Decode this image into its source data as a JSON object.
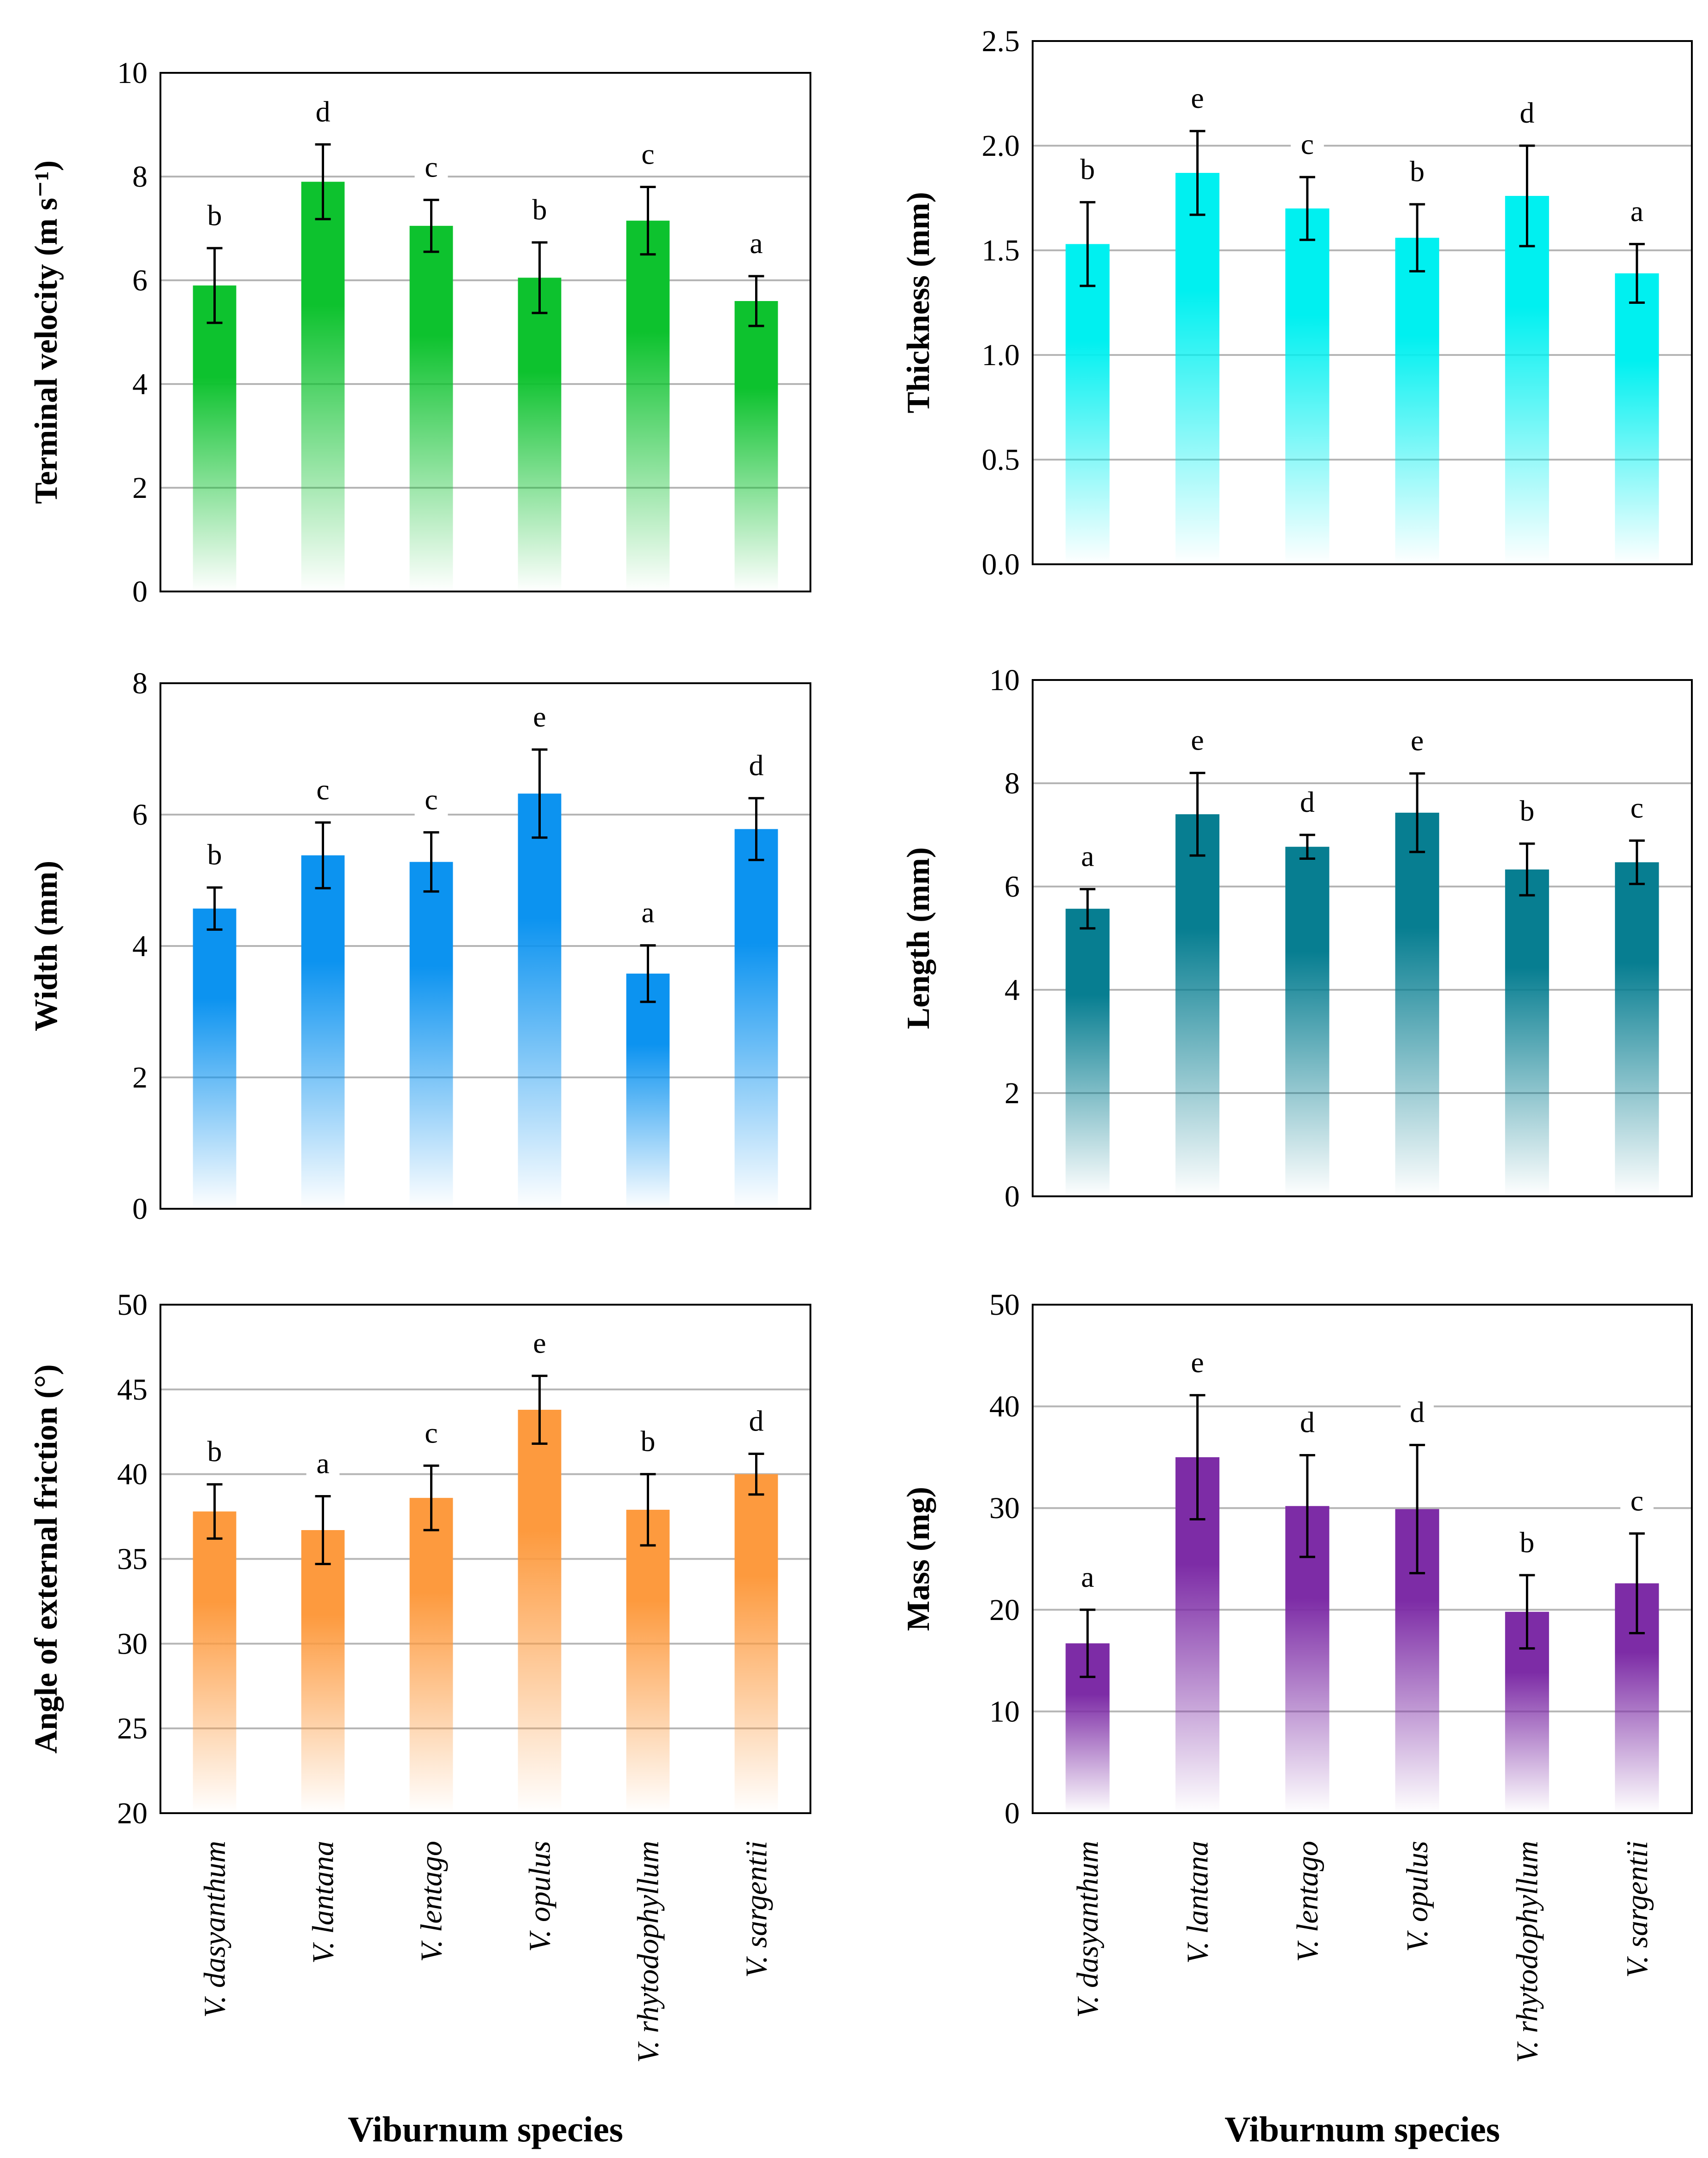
{
  "chart_data": [
    {
      "type": "bar",
      "id": "terminal-velocity",
      "color": "#0dc22e",
      "ylabel": "Terminal velocity (m s⁻¹)",
      "ylim": [
        0,
        10
      ],
      "yticks": [
        0,
        2,
        4,
        6,
        8,
        10
      ],
      "categories": [
        "V. dasyanthum",
        "V. lantana",
        "V. lentago",
        "V. opulus",
        "V. rhytodophyllum",
        "V. sargentii"
      ],
      "values": [
        5.9,
        7.9,
        7.05,
        6.05,
        7.15,
        5.6
      ],
      "errors": [
        0.72,
        0.72,
        0.5,
        0.68,
        0.65,
        0.48
      ],
      "letters": [
        "b",
        "d",
        "c",
        "b",
        "c",
        "a"
      ],
      "show_categories": false,
      "xlabel": ""
    },
    {
      "type": "bar",
      "id": "thickness",
      "color": "#00f0f0",
      "ylabel": "Thickness (mm)",
      "ylim": [
        0,
        2.5
      ],
      "yticks": [
        "0.0",
        "0.5",
        "1.0",
        "1.5",
        "2.0",
        "2.5"
      ],
      "categories": [
        "V. dasyanthum",
        "V. lantana",
        "V. lentago",
        "V. opulus",
        "V. rhytodophyllum",
        "V. sargentii"
      ],
      "values": [
        1.53,
        1.87,
        1.7,
        1.56,
        1.76,
        1.39
      ],
      "errors": [
        0.2,
        0.2,
        0.15,
        0.16,
        0.24,
        0.14
      ],
      "letters": [
        "b",
        "e",
        "c",
        "b",
        "d",
        "a"
      ],
      "show_categories": false,
      "xlabel": ""
    },
    {
      "type": "bar",
      "id": "width",
      "color": "#0c93f0",
      "ylabel": "Width (mm)",
      "ylim": [
        0,
        8
      ],
      "yticks": [
        0,
        2,
        4,
        6,
        8
      ],
      "categories": [
        "V. dasyanthum",
        "V. lantana",
        "V. lentago",
        "V. opulus",
        "V. rhytodophyllum",
        "V. sargentii"
      ],
      "values": [
        4.57,
        5.38,
        5.28,
        6.32,
        3.58,
        5.78
      ],
      "errors": [
        0.32,
        0.5,
        0.45,
        0.67,
        0.43,
        0.47
      ],
      "letters": [
        "b",
        "c",
        "c",
        "e",
        "a",
        "d"
      ],
      "show_categories": false,
      "xlabel": ""
    },
    {
      "type": "bar",
      "id": "length",
      "color": "#077e91",
      "ylabel": "Length (mm)",
      "ylim": [
        0,
        10
      ],
      "yticks": [
        0,
        2,
        4,
        6,
        8,
        10
      ],
      "categories": [
        "V. dasyanthum",
        "V. lantana",
        "V. lentago",
        "V. opulus",
        "V. rhytodophyllum",
        "V. sargentii"
      ],
      "values": [
        5.57,
        7.4,
        6.77,
        7.43,
        6.33,
        6.47
      ],
      "errors": [
        0.38,
        0.8,
        0.23,
        0.76,
        0.5,
        0.42
      ],
      "letters": [
        "a",
        "e",
        "d",
        "e",
        "b",
        "c"
      ],
      "show_categories": false,
      "xlabel": ""
    },
    {
      "type": "bar",
      "id": "angle-of-friction",
      "color": "#fd9a3e",
      "ylabel": "Angle of external friction (°)",
      "ylim": [
        20,
        50
      ],
      "yticks": [
        20,
        25,
        30,
        35,
        40,
        45,
        50
      ],
      "categories": [
        "V. dasyanthum",
        "V. lantana",
        "V. lentago",
        "V. opulus",
        "V. rhytodophyllum",
        "V. sargentii"
      ],
      "values": [
        37.8,
        36.7,
        38.6,
        43.8,
        37.9,
        40.0
      ],
      "errors": [
        1.6,
        2.0,
        1.9,
        2.0,
        2.1,
        1.2
      ],
      "letters": [
        "b",
        "a",
        "c",
        "e",
        "b",
        "d"
      ],
      "show_categories": true,
      "xlabel": "Viburnum species"
    },
    {
      "type": "bar",
      "id": "mass",
      "color": "#7d2ca6",
      "ylabel": "Mass (mg)",
      "ylim": [
        0,
        50
      ],
      "yticks": [
        0,
        10,
        20,
        30,
        40,
        50
      ],
      "categories": [
        "V. dasyanthum",
        "V. lantana",
        "V. lentago",
        "V. opulus",
        "V. rhytodophyllum",
        "V. sargentii"
      ],
      "values": [
        16.7,
        35.0,
        30.2,
        29.9,
        19.8,
        22.6
      ],
      "errors": [
        3.3,
        6.1,
        5.0,
        6.3,
        3.6,
        4.9
      ],
      "letters": [
        "a",
        "e",
        "d",
        "d",
        "b",
        "c"
      ],
      "show_categories": true,
      "xlabel": "Viburnum species"
    }
  ]
}
